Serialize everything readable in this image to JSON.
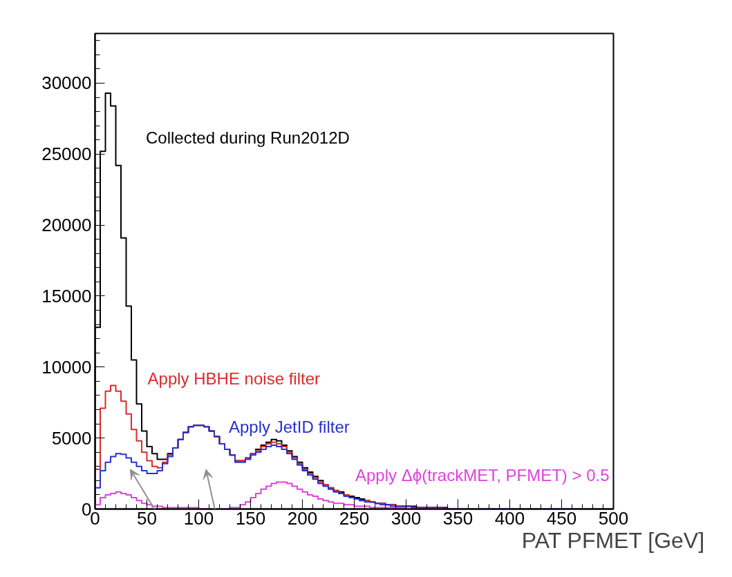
{
  "chart_data": {
    "type": "histogram",
    "xlabel": "PAT PFMET [GeV]",
    "bins": [
      0,
      5,
      10,
      15,
      20,
      25,
      30,
      35,
      40,
      45,
      50,
      55,
      60,
      65,
      70,
      75,
      80,
      85,
      90,
      95,
      100,
      105,
      110,
      115,
      120,
      125,
      130,
      135,
      140,
      145,
      150,
      155,
      160,
      165,
      170,
      175,
      180,
      185,
      190,
      195,
      200,
      205,
      210,
      215,
      220,
      225,
      230,
      235,
      240,
      245,
      250,
      255,
      260,
      265,
      270,
      275,
      280,
      285,
      290,
      295,
      300,
      305,
      310,
      315,
      320,
      325,
      330,
      335,
      340,
      345,
      350,
      355,
      360,
      365,
      370,
      375,
      380,
      385,
      390,
      395,
      400,
      405,
      410,
      415,
      420,
      425,
      430,
      435,
      440,
      445,
      450,
      455,
      460,
      465,
      470,
      475,
      480,
      485,
      490,
      495,
      500
    ],
    "series": [
      {
        "name": "Collected during Run2012D",
        "color": "#000000",
        "values": [
          12800,
          25200,
          29300,
          28400,
          24200,
          19100,
          14300,
          10500,
          7400,
          5500,
          4400,
          3900,
          3500,
          3500,
          3900,
          4300,
          4900,
          5400,
          5800,
          5900,
          5900,
          5800,
          5500,
          5100,
          4600,
          4200,
          3800,
          3400,
          3400,
          3600,
          3900,
          4200,
          4500,
          4700,
          4900,
          4800,
          4500,
          4100,
          3700,
          3300,
          2900,
          2600,
          2300,
          2000,
          1700,
          1500,
          1300,
          1200,
          1000,
          900,
          800,
          700,
          600,
          500,
          400,
          400,
          300,
          300,
          200,
          200,
          200,
          200,
          100,
          100,
          100,
          100,
          100,
          100,
          0,
          0,
          0,
          0,
          0,
          0,
          0,
          0,
          0,
          0,
          0,
          0,
          0,
          0,
          0,
          0,
          0,
          0,
          0,
          0,
          0,
          0,
          0,
          0,
          0,
          0,
          0,
          0,
          0,
          0,
          0,
          0
        ]
      },
      {
        "name": "Apply HBHE noise filter",
        "color": "#e02828",
        "values": [
          2800,
          7100,
          8300,
          8700,
          8300,
          7600,
          6700,
          5600,
          4800,
          4000,
          3400,
          3000,
          2900,
          3300,
          3800,
          4300,
          4900,
          5400,
          5800,
          5900,
          5900,
          5800,
          5500,
          5100,
          4600,
          4200,
          3800,
          3400,
          3400,
          3600,
          3900,
          4100,
          4400,
          4600,
          4700,
          4600,
          4400,
          4000,
          3600,
          3200,
          2800,
          2500,
          2200,
          1900,
          1700,
          1500,
          1300,
          1100,
          1000,
          800,
          700,
          600,
          600,
          500,
          400,
          400,
          300,
          300,
          200,
          200,
          200,
          100,
          100,
          100,
          100,
          100,
          100,
          0,
          0,
          0,
          0,
          0,
          0,
          0,
          0,
          0,
          0,
          0,
          0,
          0,
          0,
          0,
          0,
          0,
          0,
          0,
          0,
          0,
          0,
          0,
          0,
          0,
          0,
          0,
          0,
          0,
          0,
          0,
          0,
          0
        ]
      },
      {
        "name": "Apply JetID filter",
        "color": "#2830d0",
        "values": [
          1500,
          2700,
          3300,
          3700,
          3900,
          3850,
          3600,
          3300,
          3000,
          2700,
          2500,
          2500,
          2700,
          3200,
          3700,
          4300,
          4900,
          5400,
          5800,
          5900,
          5900,
          5800,
          5500,
          5100,
          4600,
          4200,
          3800,
          3300,
          3300,
          3500,
          3800,
          4000,
          4200,
          4400,
          4500,
          4400,
          4200,
          3900,
          3500,
          3100,
          2700,
          2400,
          2100,
          1800,
          1600,
          1400,
          1200,
          1100,
          900,
          800,
          700,
          600,
          500,
          500,
          400,
          300,
          300,
          200,
          200,
          200,
          200,
          100,
          100,
          100,
          100,
          100,
          100,
          0,
          0,
          0,
          0,
          0,
          0,
          0,
          0,
          0,
          0,
          0,
          0,
          0,
          0,
          0,
          0,
          0,
          0,
          0,
          0,
          0,
          0,
          0,
          0,
          0,
          0,
          0,
          0,
          0,
          0,
          0,
          0,
          0
        ]
      },
      {
        "name": "Apply Δϕ(trackMET, PFMET) > 0.5",
        "color": "#e040e0",
        "values": [
          300,
          800,
          1000,
          1100,
          1200,
          1100,
          1000,
          800,
          600,
          400,
          300,
          200,
          200,
          100,
          100,
          100,
          100,
          100,
          100,
          100,
          0,
          0,
          0,
          0,
          0,
          0,
          100,
          100,
          300,
          500,
          800,
          1100,
          1400,
          1600,
          1800,
          1900,
          1900,
          1800,
          1600,
          1400,
          1200,
          1000,
          900,
          700,
          600,
          500,
          400,
          400,
          300,
          300,
          200,
          200,
          200,
          100,
          100,
          100,
          100,
          100,
          100,
          100,
          0,
          0,
          0,
          0,
          0,
          0,
          0,
          0,
          0,
          0,
          0,
          0,
          0,
          0,
          0,
          0,
          0,
          0,
          0,
          0,
          0,
          0,
          0,
          0,
          0,
          0,
          0,
          0,
          0,
          0,
          0,
          0,
          0,
          0,
          0,
          0,
          0,
          0,
          0,
          0
        ]
      }
    ],
    "xlim": [
      0,
      500
    ],
    "xticks": [
      0,
      50,
      100,
      150,
      200,
      250,
      300,
      350,
      400,
      450,
      500
    ],
    "ylim": [
      0,
      33500
    ],
    "yticks": [
      0,
      5000,
      10000,
      15000,
      20000,
      25000,
      30000
    ],
    "grid": false
  }
}
